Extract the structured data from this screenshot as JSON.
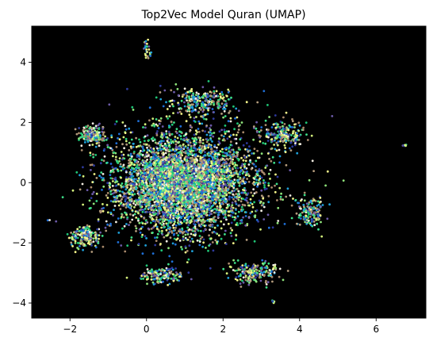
{
  "chart_data": {
    "type": "scatter",
    "title": "Top2Vec Model Quran (UMAP)",
    "xlabel": "",
    "ylabel": "",
    "xlim": [
      -3.0,
      7.3
    ],
    "ylim": [
      -4.5,
      5.2
    ],
    "xticks": [
      -2,
      0,
      2,
      4,
      6
    ],
    "yticks": [
      -4,
      -2,
      0,
      2,
      4
    ],
    "xtick_labels": [
      "−2",
      "0",
      "2",
      "4",
      "6"
    ],
    "ytick_labels": [
      "−4",
      "−2",
      "0",
      "2",
      "4"
    ],
    "grid": false,
    "legend": "none",
    "plot_background": "#000000",
    "palette": [
      "#1f6fd6",
      "#2e3a9c",
      "#1fc777",
      "#3ddf89",
      "#8ee37a",
      "#d4f07c",
      "#f4f58a",
      "#b39b7c",
      "#a98a6c",
      "#f2ede2",
      "#1ea0d8",
      "#6c5aa8"
    ],
    "point_count": 6236,
    "clusters": [
      {
        "center": [
          0.9,
          -0.1
        ],
        "spread": [
          1.5,
          1.35
        ],
        "share": 0.62
      },
      {
        "center": [
          -1.4,
          1.6
        ],
        "spread": [
          0.35,
          0.3
        ],
        "share": 0.03
      },
      {
        "center": [
          -1.6,
          -1.8
        ],
        "spread": [
          0.35,
          0.3
        ],
        "share": 0.03
      },
      {
        "center": [
          4.3,
          -1.0
        ],
        "spread": [
          0.3,
          0.5
        ],
        "share": 0.025
      },
      {
        "center": [
          2.8,
          -3.0
        ],
        "spread": [
          0.6,
          0.3
        ],
        "share": 0.03
      },
      {
        "center": [
          0.4,
          -3.1
        ],
        "spread": [
          0.5,
          0.25
        ],
        "share": 0.025
      },
      {
        "center": [
          1.5,
          2.7
        ],
        "spread": [
          0.8,
          0.4
        ],
        "share": 0.04
      },
      {
        "center": [
          3.6,
          1.6
        ],
        "spread": [
          0.5,
          0.4
        ],
        "share": 0.03
      },
      {
        "center": [
          0.0,
          4.4
        ],
        "spread": [
          0.08,
          0.25
        ],
        "share": 0.004
      },
      {
        "center": [
          6.75,
          1.25
        ],
        "spread": [
          0.06,
          0.05
        ],
        "share": 0.001
      },
      {
        "center": [
          3.3,
          -3.95
        ],
        "spread": [
          0.06,
          0.05
        ],
        "share": 0.001
      },
      {
        "center": [
          1.2,
          0.3
        ],
        "spread": [
          2.1,
          1.8
        ],
        "share": 0.18
      }
    ]
  }
}
